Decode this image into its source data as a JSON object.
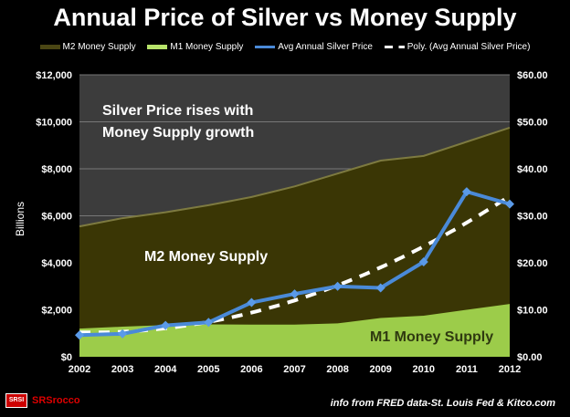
{
  "chart_data": {
    "type": "area",
    "title": "Annual Price of Silver vs Money Supply",
    "annotation_top": [
      "Silver Price rises with",
      "Money Supply growth"
    ],
    "label_m2": "M2 Money Supply",
    "label_m1": "M1 Money Supply",
    "ylabel": "Billions",
    "ylim": [
      0,
      12000
    ],
    "y2lim": [
      0,
      60
    ],
    "yticks": [
      "$0",
      "$2,000",
      "$4,000",
      "$6,000",
      "$8,000",
      "$10,000",
      "$12,000"
    ],
    "y2ticks": [
      "$0.00",
      "$10.00",
      "$20.00",
      "$30.00",
      "$40.00",
      "$50.00",
      "$60.00"
    ],
    "categories": [
      "2002",
      "2003",
      "2004",
      "2005",
      "2006",
      "2007",
      "2008",
      "2009",
      "2010",
      "2011",
      "2012"
    ],
    "series": [
      {
        "name": "M2 Money Supply",
        "axis": "left",
        "color": "#3a3605",
        "values": [
          5550,
          5900,
          6150,
          6450,
          6800,
          7250,
          7800,
          8350,
          8550,
          9150,
          9750
        ]
      },
      {
        "name": "M1 Money Supply",
        "axis": "left",
        "color": "#9ccc4a",
        "values": [
          1200,
          1280,
          1350,
          1380,
          1370,
          1370,
          1420,
          1650,
          1750,
          2000,
          2250
        ]
      },
      {
        "name": "Avg Annual Silver Price",
        "axis": "right",
        "color": "#4a8ad8",
        "values": [
          4.6,
          4.88,
          6.67,
          7.32,
          11.55,
          13.38,
          14.99,
          14.67,
          20.19,
          35.12,
          32.5
        ]
      },
      {
        "name": "Poly. (Avg Annual Silver Price)",
        "axis": "right",
        "color": "#ffffff",
        "type": "trend"
      }
    ],
    "grid": true,
    "legend_position": "top"
  },
  "footer": {
    "source": "info from FRED data-St. Louis Fed & Kitco.com",
    "brand": "SRSrocco",
    "logo_text": "SRSI"
  }
}
